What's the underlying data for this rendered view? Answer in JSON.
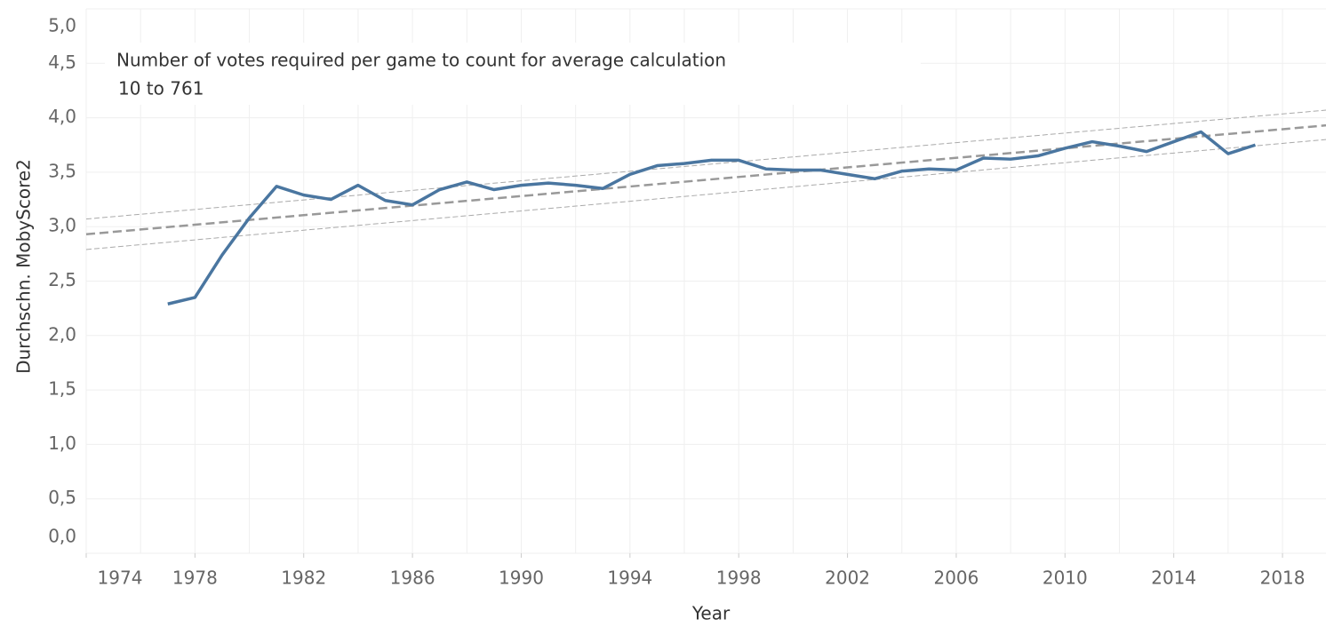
{
  "chart_data": {
    "type": "line",
    "annotation": {
      "title": "Number of votes required per game to count for average calculation",
      "subtitle": "10 to 761"
    },
    "x_label": "Year",
    "y_label": "Durchschn. MobyScore2",
    "x": [
      1977,
      1978,
      1979,
      1980,
      1981,
      1982,
      1983,
      1984,
      1985,
      1986,
      1987,
      1988,
      1989,
      1990,
      1991,
      1992,
      1993,
      1994,
      1995,
      1996,
      1997,
      1998,
      1999,
      2000,
      2001,
      2002,
      2003,
      2004,
      2005,
      2006,
      2007,
      2008,
      2009,
      2010,
      2011,
      2012,
      2013,
      2014,
      2015,
      2016,
      2017
    ],
    "series": [
      {
        "color": "#4a76a0",
        "values": [
          2.29,
          2.35,
          2.74,
          3.08,
          3.37,
          3.29,
          3.25,
          3.38,
          3.24,
          3.2,
          3.34,
          3.41,
          3.34,
          3.38,
          3.4,
          3.38,
          3.35,
          3.48,
          3.56,
          3.58,
          3.61,
          3.61,
          3.53,
          3.52,
          3.52,
          3.48,
          3.44,
          3.51,
          3.53,
          3.52,
          3.63,
          3.62,
          3.65,
          3.72,
          3.78,
          3.74,
          3.69,
          3.78,
          3.87,
          3.67,
          3.75
        ]
      }
    ],
    "trend_lines": [
      {
        "color": "#999999",
        "dash": "10 5",
        "width": 2.5,
        "x": [
          1974,
          2019.6
        ],
        "values": [
          2.93,
          3.93
        ]
      },
      {
        "color": "#aaaaaa",
        "dash": "6 3",
        "width": 1,
        "x": [
          1974,
          2019.6
        ],
        "values": [
          3.07,
          4.07
        ]
      },
      {
        "color": "#aaaaaa",
        "dash": "6 3",
        "width": 1,
        "x": [
          1974,
          2019.6
        ],
        "values": [
          2.79,
          3.8
        ]
      }
    ],
    "xlim": [
      1974,
      2019.6
    ],
    "xticks": [
      1974,
      1978,
      1982,
      1986,
      1990,
      1994,
      1998,
      2002,
      2006,
      2010,
      2014,
      2018
    ],
    "x_gridlines": [
      1974,
      1976,
      1978,
      1980,
      1982,
      1984,
      1986,
      1988,
      1990,
      1992,
      1994,
      1996,
      1998,
      2000,
      2002,
      2004,
      2006,
      2008,
      2010,
      2012,
      2014,
      2016,
      2018
    ],
    "ylim": [
      0,
      5
    ],
    "yticks": [
      {
        "value": 0,
        "label": "0,0"
      },
      {
        "value": 0.5,
        "label": "0,5"
      },
      {
        "value": 1,
        "label": "1,0"
      },
      {
        "value": 1.5,
        "label": "1,5"
      },
      {
        "value": 2,
        "label": "2,0"
      },
      {
        "value": 2.5,
        "label": "2,5"
      },
      {
        "value": 3,
        "label": "3,0"
      },
      {
        "value": 3.5,
        "label": "3,5"
      },
      {
        "value": 4,
        "label": "4,0"
      },
      {
        "value": 4.5,
        "label": "4,5"
      },
      {
        "value": 5,
        "label": "5,0"
      }
    ],
    "grid": true
  }
}
